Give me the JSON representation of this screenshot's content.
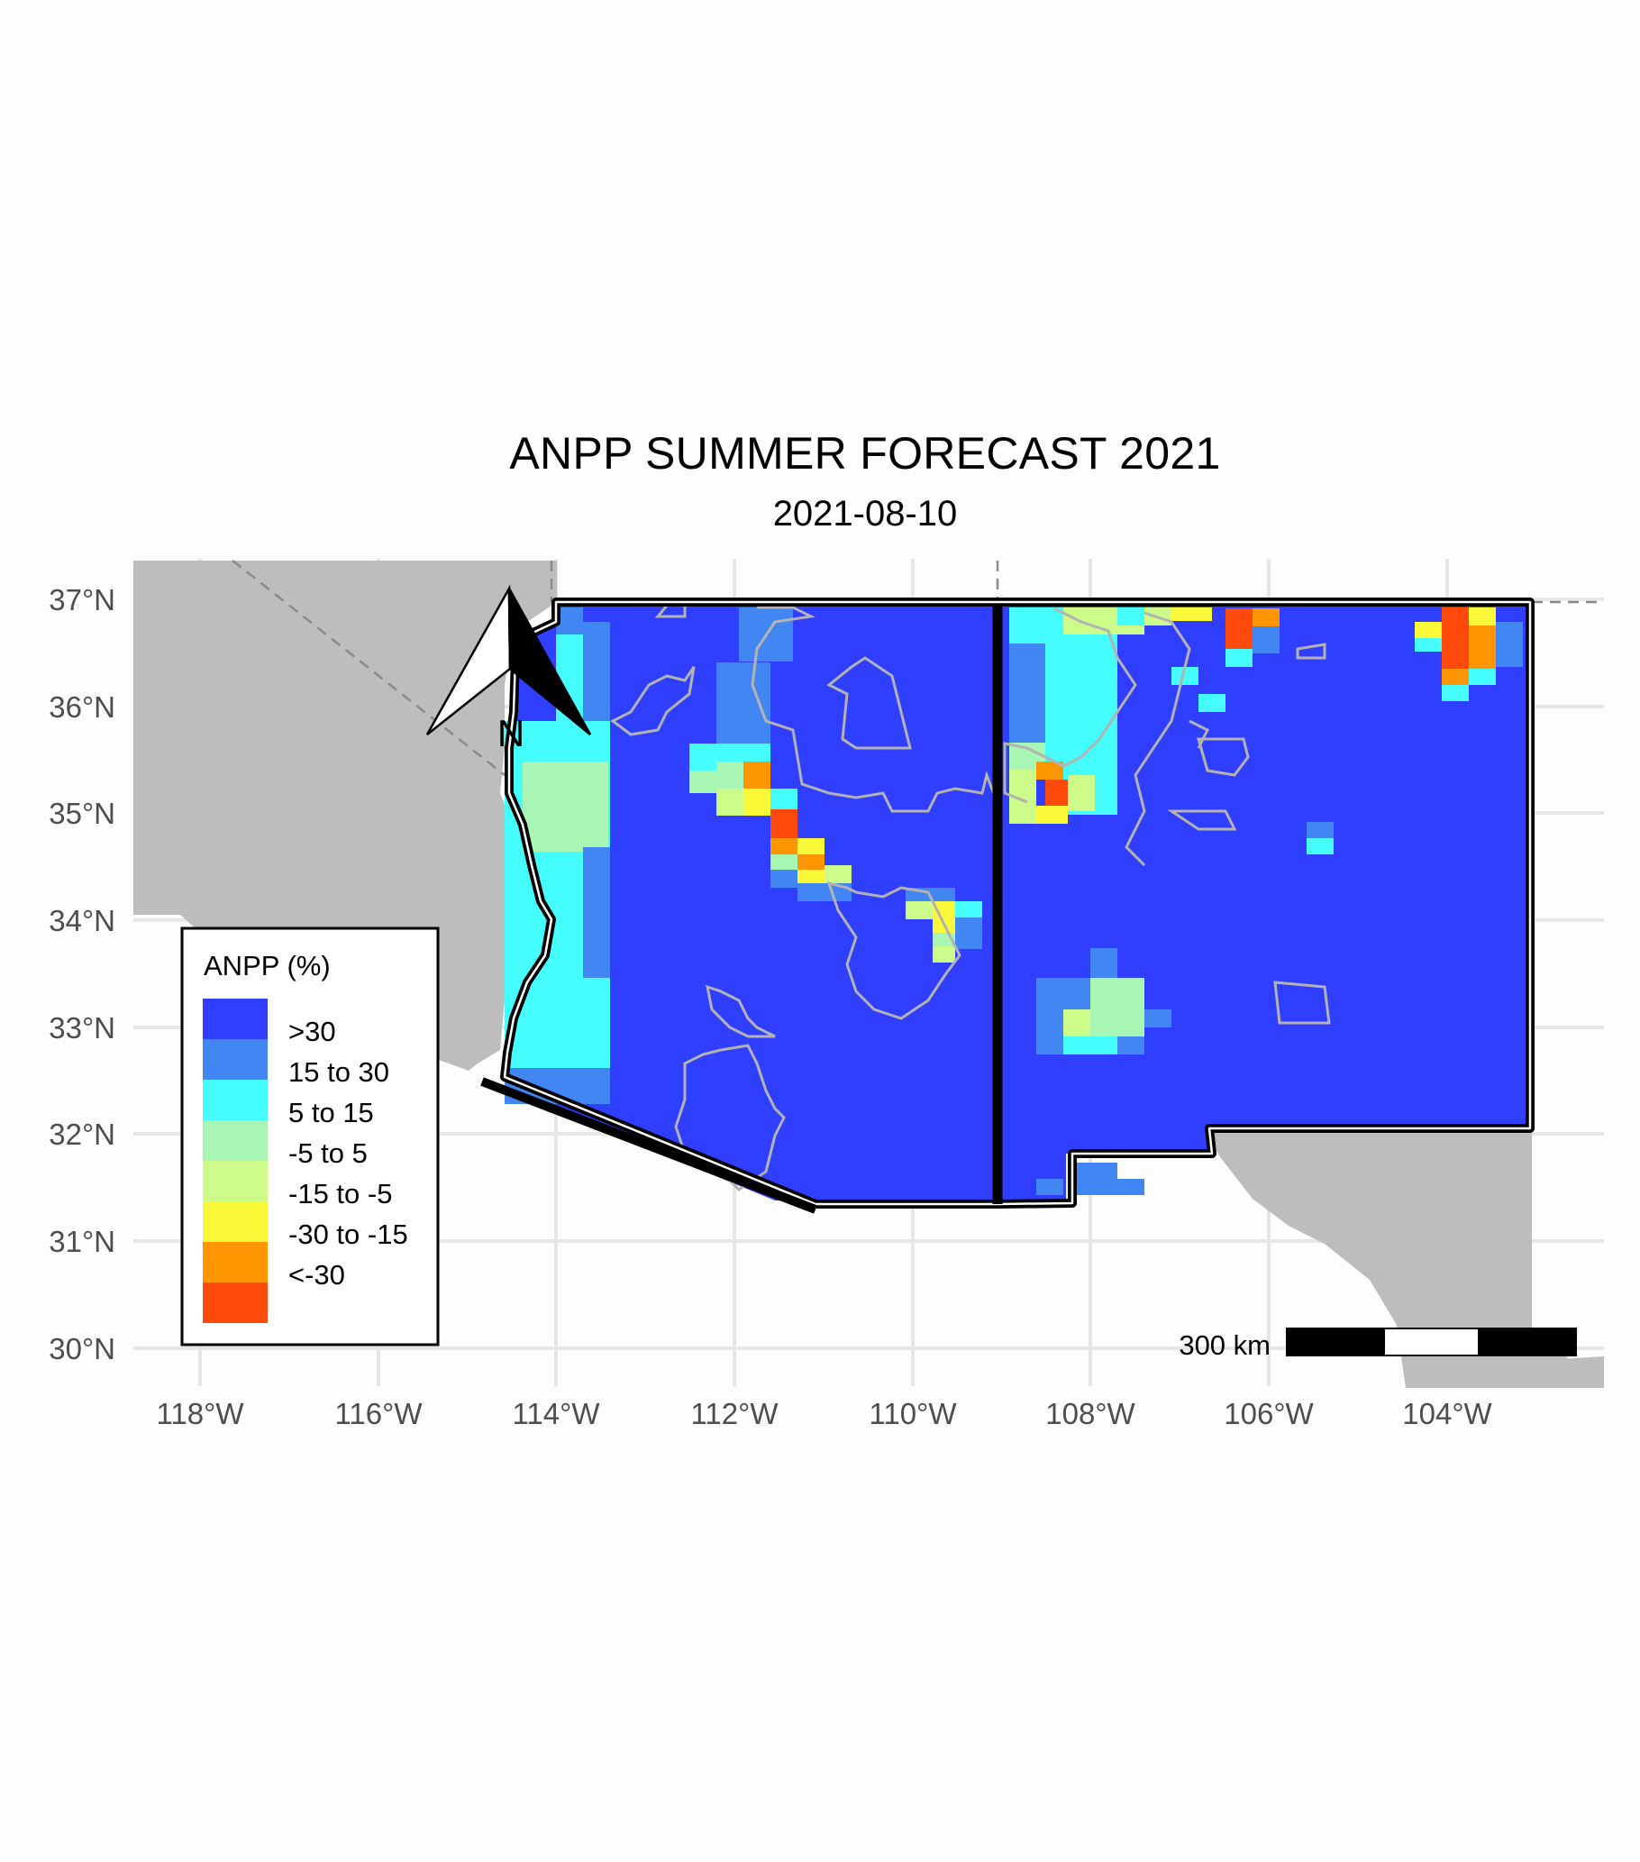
{
  "title": "ANPP SUMMER FORECAST 2021",
  "subtitle": "2021-08-10",
  "north_arrow": {
    "label": "N"
  },
  "scale_bar": {
    "label": "300 km"
  },
  "legend": {
    "title": "ANPP (%)",
    "items": [
      {
        "label": ">30",
        "color": "#2f3eff"
      },
      {
        "label": "15 to 30",
        "color": "#4286f4"
      },
      {
        "label": "5 to 15",
        "color": "#45fdfd"
      },
      {
        "label": "-5 to 5",
        "color": "#a8f6b4"
      },
      {
        "label": "-15 to -5",
        "color": "#ccfb89"
      },
      {
        "label": "-30 to -15",
        "color": "#f9f93a"
      },
      {
        "label": "<-30",
        "color": "#ff9500"
      },
      {
        "label": "",
        "color": "#ff4a0b"
      }
    ]
  },
  "axes": {
    "x_ticks": [
      "118°W",
      "116°W",
      "114°W",
      "112°W",
      "110°W",
      "108°W",
      "106°W",
      "104°W"
    ],
    "y_ticks": [
      "37°N",
      "36°N",
      "35°N",
      "34°N",
      "33°N",
      "32°N",
      "31°N",
      "30°N"
    ]
  },
  "colors": {
    "background_land": "#bdbdbd",
    "state_border": "#000000",
    "land_boundary": "#b0b0b0",
    "grid": "#e6e6e6"
  }
}
